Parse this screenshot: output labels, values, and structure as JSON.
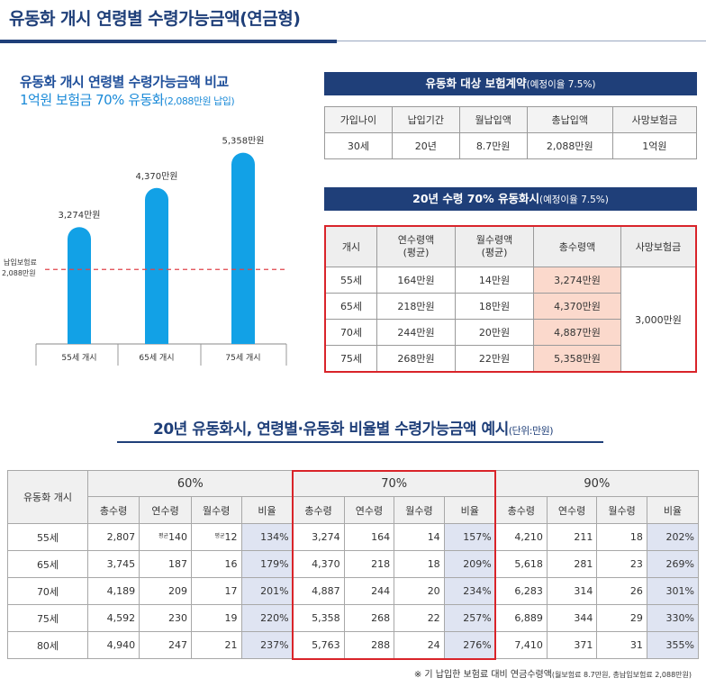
{
  "page_title": "유동화 개시 연령별 수령가능금액(연금형)",
  "chart_title": "유동화 개시 연령별 수령가능금액 비교",
  "chart_subtitle_main": "1억원 보험금 70% 유동화",
  "chart_subtitle_note": "(2,088만원 납입)",
  "chart_data": {
    "type": "bar",
    "categories": [
      "55세 개시",
      "65세 개시",
      "75세 개시"
    ],
    "values": [
      3274,
      4370,
      5358
    ],
    "value_labels": [
      "3,274만원",
      "4,370만원",
      "5,358만원"
    ],
    "reference_line": {
      "value": 2088,
      "label_line1": "납입보험료",
      "label_line2": "2,088만원"
    },
    "ylim": [
      0,
      5600
    ],
    "unit": "만원"
  },
  "contract": {
    "title": "유동화 대상 보험계약",
    "title_note": "(예정이율 7.5%)",
    "headers": [
      "가입나이",
      "납입기간",
      "월납입액",
      "총납입액",
      "사망보험금"
    ],
    "row": [
      "30세",
      "20년",
      "8.7만원",
      "2,088만원",
      "1억원"
    ]
  },
  "receipt": {
    "title": "20년 수령 70% 유동화시",
    "title_note": "(예정이율 7.5%)",
    "headers": [
      "개시",
      "연수령액\n(평균)",
      "월수령액\n(평균)",
      "총수령액",
      "사망보험금"
    ],
    "rows": [
      [
        "55세",
        "164만원",
        "14만원",
        "3,274만원"
      ],
      [
        "65세",
        "218만원",
        "18만원",
        "4,370만원"
      ],
      [
        "70세",
        "244만원",
        "20만원",
        "4,887만원"
      ],
      [
        "75세",
        "268만원",
        "22만원",
        "5,358만원"
      ]
    ],
    "death_benefit": "3,000만원"
  },
  "section_title": "20년 유동화시, 연령별·유동화 비율별 수령가능금액 예시",
  "section_unit": "(단위:만원)",
  "ratio_table": {
    "row_header": "유동화 개시",
    "groups": [
      "60%",
      "70%",
      "90%"
    ],
    "sub_headers": [
      "총수령",
      "연수령",
      "월수령",
      "비율"
    ],
    "approx_mark": "평균",
    "rows": [
      {
        "age": "55세",
        "cells": [
          "2,807",
          "140",
          "12",
          "134%",
          "3,274",
          "164",
          "14",
          "157%",
          "4,210",
          "211",
          "18",
          "202%"
        ]
      },
      {
        "age": "65세",
        "cells": [
          "3,745",
          "187",
          "16",
          "179%",
          "4,370",
          "218",
          "18",
          "209%",
          "5,618",
          "281",
          "23",
          "269%"
        ]
      },
      {
        "age": "70세",
        "cells": [
          "4,189",
          "209",
          "17",
          "201%",
          "4,887",
          "244",
          "20",
          "234%",
          "6,283",
          "314",
          "26",
          "301%"
        ]
      },
      {
        "age": "75세",
        "cells": [
          "4,592",
          "230",
          "19",
          "220%",
          "5,358",
          "268",
          "22",
          "257%",
          "6,889",
          "344",
          "29",
          "330%"
        ]
      },
      {
        "age": "80세",
        "cells": [
          "4,940",
          "247",
          "21",
          "237%",
          "5,763",
          "288",
          "24",
          "276%",
          "7,410",
          "371",
          "31",
          "355%"
        ]
      }
    ]
  },
  "footnote_main": "※ 기 납입한 보험료 대비 연금수령액",
  "footnote_note": "(월보험료 8.7만원, 총납입보험료 2,088만원)"
}
